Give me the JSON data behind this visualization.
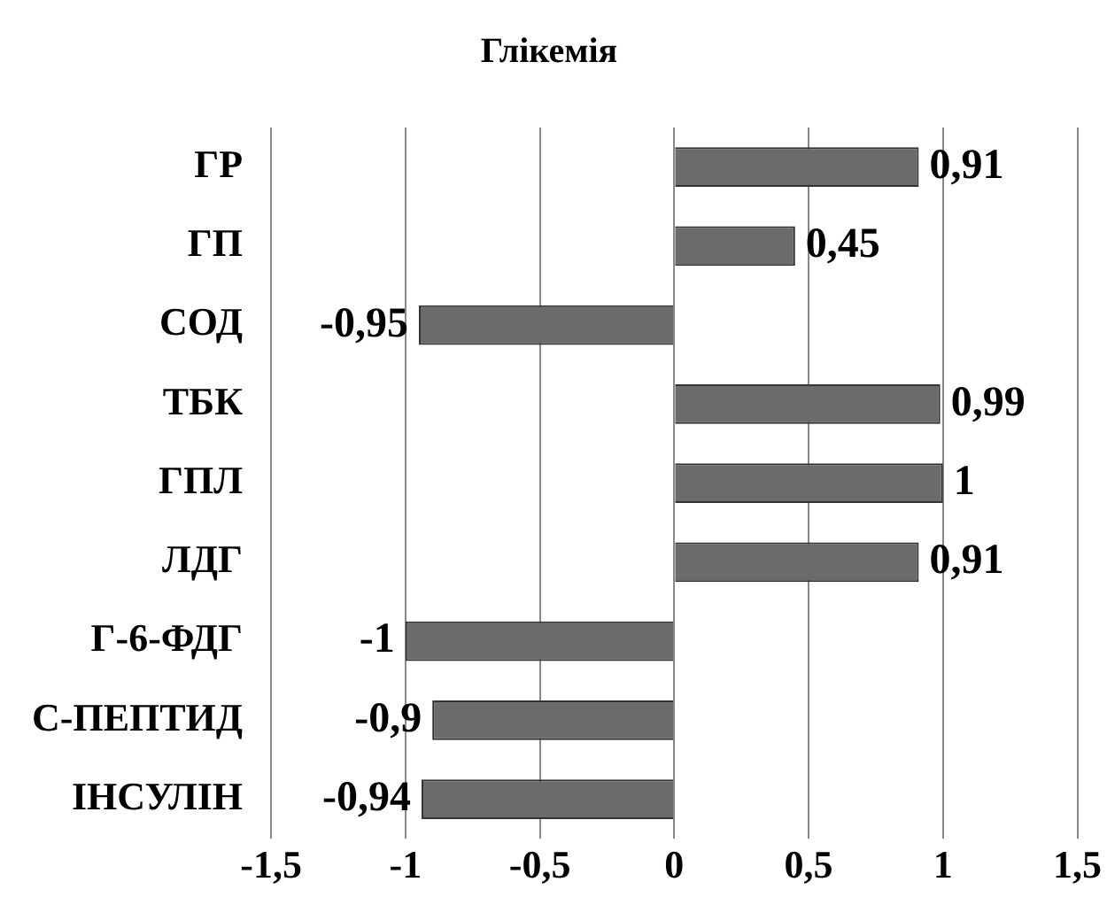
{
  "chart_data": {
    "type": "bar",
    "orientation": "horizontal",
    "title": "Глікемія",
    "categories": [
      "ГР",
      "ГП",
      "СОД",
      "ТБК",
      "ГПЛ",
      "ЛДГ",
      "Г-6-ФДГ",
      "С-ПЕПТИД",
      "ІНСУЛІН"
    ],
    "values": [
      0.91,
      0.45,
      -0.95,
      0.99,
      1,
      0.91,
      -1,
      -0.9,
      -0.94
    ],
    "value_labels": [
      "0,91",
      "0,45",
      "-0,95",
      "0,99",
      "1",
      "0,91",
      "-1",
      "-0,9",
      "-0,94"
    ],
    "color": "#6b6b6b",
    "xlim": [
      -1.5,
      1.5
    ],
    "xticks": [
      {
        "value": -1.5,
        "label": "-1,5"
      },
      -1,
      {
        "value": -0.5,
        "label": "-0,5"
      },
      0,
      {
        "value": 0.5,
        "label": "0,5"
      },
      1,
      {
        "value": 1.5,
        "label": "1,5"
      }
    ],
    "grid": "x"
  }
}
